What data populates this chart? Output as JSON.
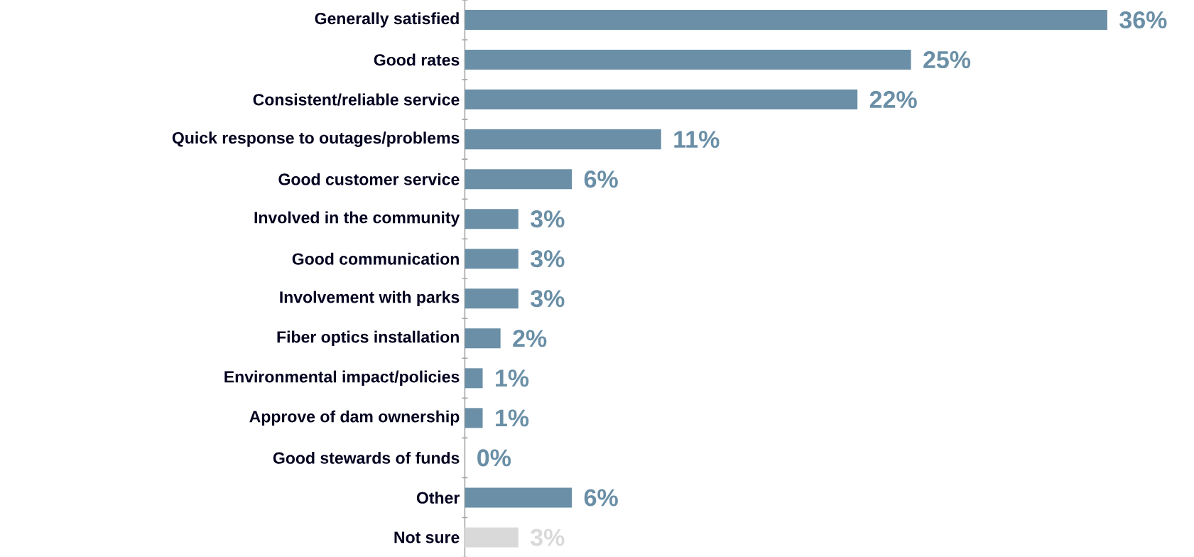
{
  "chart_data": {
    "type": "bar",
    "orientation": "horizontal",
    "categories": [
      "Generally satisfied",
      "Good rates",
      "Consistent/reliable service",
      "Quick response to outages/problems",
      "Good customer service",
      "Involved in the community",
      "Good communication",
      "Involvement with parks",
      "Fiber optics installation",
      "Environmental impact/policies",
      "Approve of dam ownership",
      "Good stewards of funds",
      "Other",
      "Not sure"
    ],
    "values": [
      36,
      25,
      22,
      11,
      6,
      3,
      3,
      3,
      2,
      1,
      1,
      0,
      6,
      3
    ],
    "value_labels": [
      "36%",
      "25%",
      "22%",
      "11%",
      "6%",
      "3%",
      "3%",
      "3%",
      "2%",
      "1%",
      "1%",
      "0%",
      "6%",
      "3%"
    ],
    "colors": [
      "#6a8fa6",
      "#6a8fa6",
      "#6a8fa6",
      "#6a8fa6",
      "#6a8fa6",
      "#6a8fa6",
      "#6a8fa6",
      "#6a8fa6",
      "#6a8fa6",
      "#6a8fa6",
      "#6a8fa6",
      "#6a8fa6",
      "#6a8fa6",
      "#d9d9d9"
    ]
  }
}
